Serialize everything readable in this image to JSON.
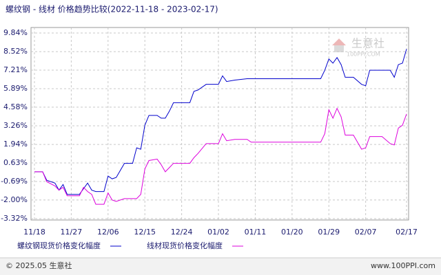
{
  "chart_data": {
    "type": "line",
    "title": "螺纹钢 - 线材 价格趋势比较(2022-11-18 - 2023-02-17)",
    "x": [
      "11/18",
      "11/20",
      "11/21",
      "11/23",
      "11/24",
      "11/25",
      "11/26",
      "11/29",
      "11/30",
      "12/01",
      "12/02",
      "12/03",
      "12/05",
      "12/06",
      "12/07",
      "12/08",
      "12/10",
      "12/12",
      "12/13",
      "12/14",
      "12/15",
      "12/16",
      "12/18",
      "12/19",
      "12/20",
      "12/21",
      "12/22",
      "12/26",
      "12/27",
      "12/28",
      "12/30",
      "01/02",
      "01/03",
      "01/04",
      "01/06",
      "01/09",
      "01/10",
      "01/27",
      "01/28",
      "01/29",
      "01/30",
      "01/31",
      "02/01",
      "02/02",
      "02/04",
      "02/06",
      "02/07",
      "02/08",
      "02/11",
      "02/13",
      "02/14",
      "02/15",
      "02/16",
      "02/17"
    ],
    "series": [
      {
        "name": "螺纹钢现货价格变化幅度",
        "color": "#0000cc",
        "values": [
          0,
          0,
          -0.6,
          -0.8,
          -1.3,
          -0.9,
          -1.6,
          -1.6,
          -1.2,
          -0.8,
          -1.3,
          -1.4,
          -1.4,
          -0.3,
          -0.5,
          -0.4,
          0.6,
          0.6,
          1.7,
          1.6,
          3.3,
          4.0,
          4.0,
          3.8,
          3.8,
          4.3,
          4.9,
          4.9,
          5.7,
          5.8,
          6.2,
          6.2,
          6.8,
          6.4,
          6.5,
          6.6,
          6.6,
          6.6,
          7.2,
          8.0,
          7.7,
          8.1,
          7.6,
          6.7,
          6.7,
          6.2,
          6.1,
          7.2,
          7.2,
          7.2,
          6.7,
          7.6,
          7.7,
          8.7
        ]
      },
      {
        "name": "线材现货价格变化幅度",
        "color": "#dd00dd",
        "values": [
          0,
          0,
          -0.7,
          -1.0,
          -1.3,
          -1.1,
          -1.7,
          -1.7,
          -1.1,
          -1.4,
          -1.6,
          -2.3,
          -2.3,
          -1.5,
          -2.0,
          -2.1,
          -1.9,
          -1.9,
          -1.9,
          -1.6,
          0.2,
          0.8,
          0.9,
          0.5,
          0.0,
          0.3,
          0.6,
          0.6,
          1.0,
          1.3,
          2.0,
          2.0,
          2.7,
          2.2,
          2.3,
          2.3,
          2.1,
          2.1,
          2.7,
          4.4,
          3.8,
          4.5,
          3.9,
          2.6,
          2.6,
          1.6,
          1.7,
          2.5,
          2.5,
          2.0,
          1.9,
          3.1,
          3.3,
          4.1
        ]
      }
    ],
    "xticks": [
      "11/18",
      "11/27",
      "12/06",
      "12/15",
      "12/24",
      "01/02",
      "01/11",
      "01/20",
      "01/29",
      "02/07",
      "02/17"
    ],
    "ylim": [
      -3.32,
      9.84
    ],
    "yticks": [
      {
        "value": -3.32,
        "label": "-3.32%"
      },
      {
        "value": -2.0,
        "label": "-2.00%"
      },
      {
        "value": -0.69,
        "label": "-0.69%"
      },
      {
        "value": 0.63,
        "label": "0.63%"
      },
      {
        "value": 1.94,
        "label": "1.94%"
      },
      {
        "value": 3.26,
        "label": "3.26%"
      },
      {
        "value": 4.58,
        "label": "4.58%"
      },
      {
        "value": 5.89,
        "label": "5.89%"
      },
      {
        "value": 7.21,
        "label": "7.21%"
      },
      {
        "value": 8.52,
        "label": "8.52%"
      },
      {
        "value": 9.84,
        "label": "9.84%"
      }
    ],
    "grid": true,
    "watermark": "生意社",
    "watermark_sub": "100PPI.COM",
    "footer_left": "© 2025.05 生意社",
    "footer_right": "www.100PPI.com"
  }
}
